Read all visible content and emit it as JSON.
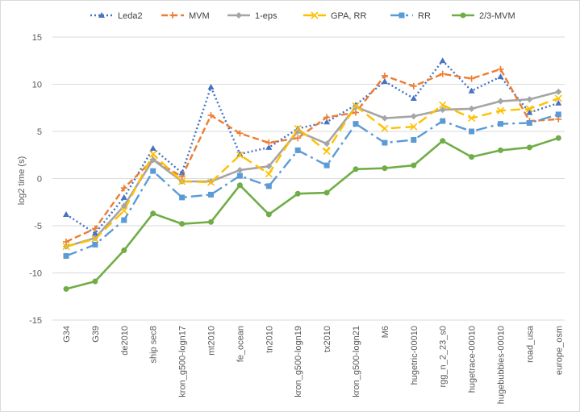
{
  "chart_data": {
    "type": "line",
    "title": "",
    "xlabel": "",
    "ylabel": "log2 time (s)",
    "ylim": [
      -15,
      15
    ],
    "yticks": [
      -15,
      -10,
      -5,
      0,
      5,
      10,
      15
    ],
    "grid": true,
    "legend_position": "top",
    "categories": [
      "G34",
      "G39",
      "de2010",
      "ship sec8",
      "kron_g500-logn17",
      "mt2010",
      "fe_ocean",
      "tn2010",
      "kron_g500-logn19",
      "tx2010",
      "kron_g500-logn21",
      "M6",
      "hugetric-00010",
      "rgg_n_2_23_s0",
      "hugetrace-00010",
      "hugebubbles-00010",
      "road_usa",
      "europe_osm"
    ],
    "series": [
      {
        "name": "Leda2",
        "color": "#4472c4",
        "style": "dotted",
        "marker": "triangle",
        "values": [
          -3.8,
          -5.8,
          -2.0,
          3.2,
          0.6,
          9.7,
          2.6,
          3.3,
          5.3,
          6.0,
          7.8,
          10.3,
          8.5,
          12.5,
          9.3,
          10.8,
          7.0,
          8.0
        ]
      },
      {
        "name": "MVM",
        "color": "#ed7d31",
        "style": "dashed",
        "marker": "plus",
        "values": [
          -6.7,
          -5.3,
          -1.0,
          2.0,
          0.2,
          6.7,
          4.8,
          3.8,
          4.3,
          6.5,
          7.0,
          10.9,
          9.8,
          11.1,
          10.6,
          11.6,
          6.1,
          6.3
        ]
      },
      {
        "name": "1-eps",
        "color": "#a5a5a5",
        "style": "solid",
        "marker": "diamond",
        "values": [
          -7.2,
          -6.3,
          -2.9,
          2.0,
          -0.3,
          -0.3,
          0.9,
          1.3,
          5.0,
          3.7,
          7.6,
          6.4,
          6.6,
          7.3,
          7.4,
          8.2,
          8.4,
          9.2
        ]
      },
      {
        "name": "GPA, RR",
        "color": "#ffc000",
        "style": "longdash",
        "marker": "x",
        "values": [
          -7.2,
          -6.4,
          -3.4,
          2.6,
          -0.3,
          -0.4,
          2.5,
          0.5,
          5.3,
          2.9,
          7.7,
          5.3,
          5.5,
          7.8,
          6.4,
          7.2,
          7.4,
          8.5
        ]
      },
      {
        "name": "RR",
        "color": "#5b9bd5",
        "style": "dashdot",
        "marker": "square",
        "values": [
          -8.2,
          -7.0,
          -4.4,
          0.8,
          -2.0,
          -1.7,
          0.3,
          -0.8,
          3.0,
          1.4,
          5.8,
          3.8,
          4.1,
          6.1,
          5.0,
          5.8,
          5.9,
          6.8
        ]
      },
      {
        "name": "2/3-MVM",
        "color": "#70ad47",
        "style": "solid",
        "marker": "circle",
        "values": [
          -11.7,
          -10.9,
          -7.6,
          -3.7,
          -4.8,
          -4.6,
          -0.7,
          -3.8,
          -1.6,
          -1.5,
          1.0,
          1.1,
          1.4,
          4.0,
          2.3,
          3.0,
          3.3,
          4.3
        ]
      }
    ]
  }
}
